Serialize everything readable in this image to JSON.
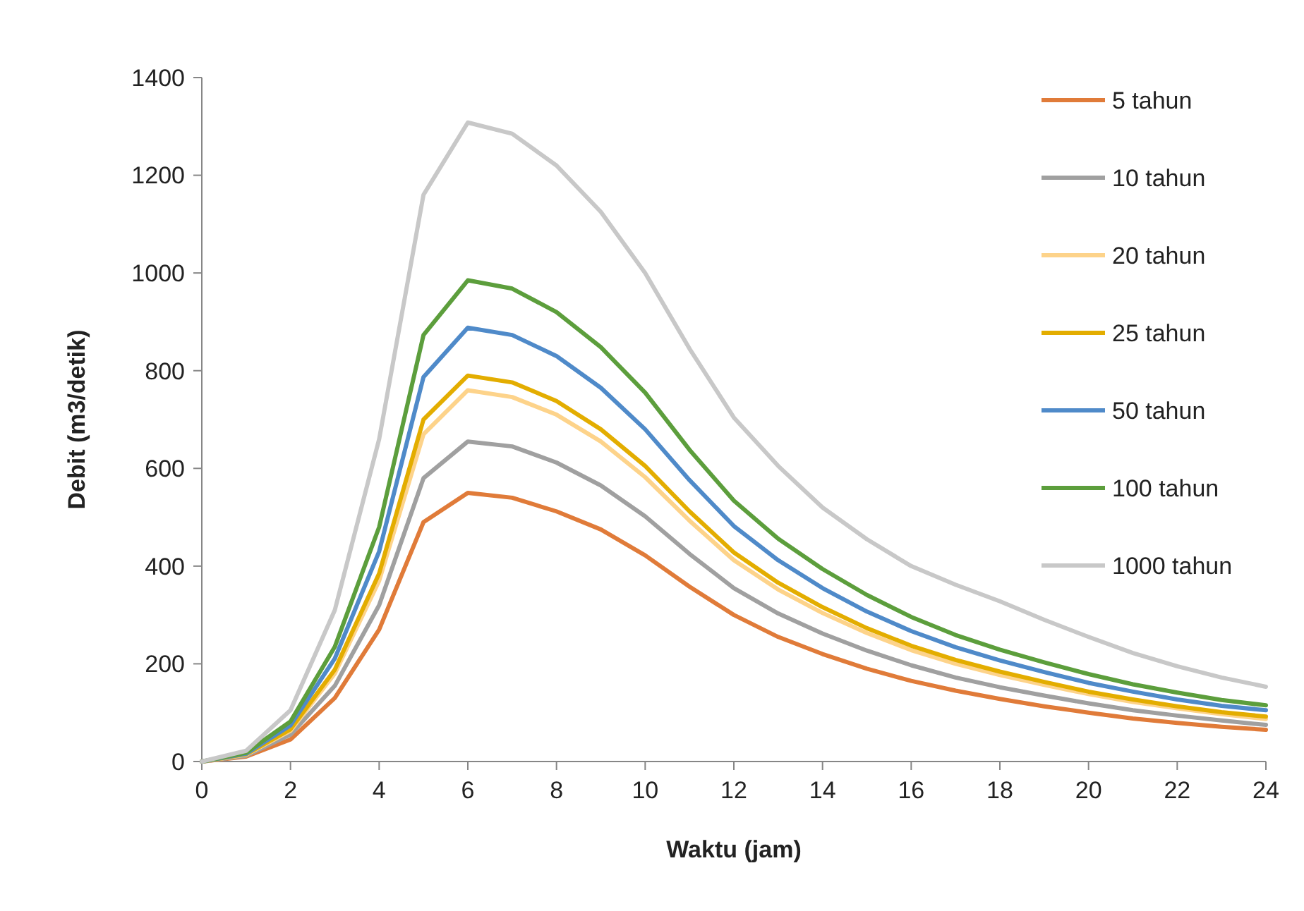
{
  "chart_data": {
    "type": "line",
    "xlabel": "Waktu (jam)",
    "ylabel": "Debit (m3/detik)",
    "x": [
      0,
      1,
      2,
      3,
      4,
      5,
      6,
      7,
      8,
      9,
      10,
      11,
      12,
      13,
      14,
      15,
      16,
      17,
      18,
      19,
      20,
      21,
      22,
      23,
      24
    ],
    "xlim": [
      0,
      24
    ],
    "xticks": [
      0,
      2,
      4,
      6,
      8,
      10,
      12,
      14,
      16,
      18,
      20,
      22,
      24
    ],
    "ylim": [
      0,
      1400
    ],
    "yticks": [
      0,
      200,
      400,
      600,
      800,
      1000,
      1200,
      1400
    ],
    "grid": false,
    "legend": "right",
    "marker": "none",
    "line_style": "solid",
    "series": [
      {
        "name": "5 tahun",
        "color": "#e07b39",
        "values": [
          0,
          10,
          45,
          130,
          270,
          490,
          550,
          540,
          512,
          475,
          422,
          358,
          300,
          255,
          220,
          190,
          165,
          145,
          128,
          113,
          100,
          88,
          79,
          71,
          65
        ]
      },
      {
        "name": "10 tahun",
        "color": "#a0a0a0",
        "values": [
          0,
          12,
          55,
          155,
          320,
          580,
          655,
          645,
          612,
          565,
          502,
          425,
          355,
          303,
          262,
          227,
          197,
          172,
          152,
          135,
          119,
          105,
          94,
          84,
          75
        ]
      },
      {
        "name": "20 tahun",
        "color": "#fdd38a",
        "values": [
          0,
          14,
          63,
          180,
          370,
          670,
          760,
          746,
          710,
          655,
          582,
          493,
          412,
          352,
          304,
          263,
          228,
          200,
          177,
          157,
          138,
          122,
          109,
          97,
          87
        ]
      },
      {
        "name": "25 tahun",
        "color": "#e3ad00",
        "values": [
          0,
          15,
          66,
          188,
          385,
          700,
          790,
          776,
          738,
          680,
          605,
          512,
          428,
          366,
          316,
          273,
          237,
          208,
          184,
          163,
          143,
          127,
          113,
          101,
          92
        ]
      },
      {
        "name": "50 tahun",
        "color": "#4f8ac9",
        "values": [
          0,
          16,
          74,
          211,
          430,
          787,
          888,
          873,
          830,
          765,
          680,
          576,
          482,
          412,
          355,
          307,
          267,
          234,
          207,
          183,
          161,
          143,
          127,
          114,
          105
        ]
      },
      {
        "name": "100 tahun",
        "color": "#5c9e3c",
        "values": [
          0,
          18,
          82,
          235,
          480,
          873,
          985,
          968,
          920,
          848,
          755,
          638,
          534,
          456,
          394,
          341,
          296,
          259,
          229,
          203,
          179,
          158,
          141,
          126,
          115
        ]
      },
      {
        "name": "1000 tahun",
        "color": "#c8c8c8",
        "values": [
          0,
          22,
          105,
          310,
          660,
          1160,
          1308,
          1285,
          1220,
          1125,
          1000,
          845,
          704,
          605,
          520,
          455,
          400,
          362,
          328,
          290,
          255,
          222,
          195,
          172,
          153
        ]
      }
    ]
  }
}
